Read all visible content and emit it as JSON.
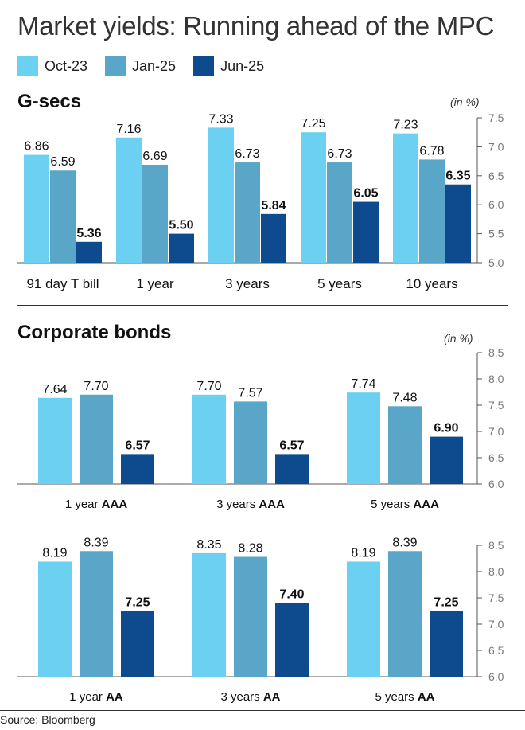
{
  "title": "Market yields: Running ahead of the MPC",
  "legend": [
    {
      "label": "Oct-23",
      "color": "#6cd0f2"
    },
    {
      "label": "Jan-25",
      "color": "#5aa6c8"
    },
    {
      "label": "Jun-25",
      "color": "#0d4a8e"
    }
  ],
  "sections": {
    "gsecs": {
      "title": "G-secs",
      "unit": "(in %)"
    },
    "corporate": {
      "title": "Corporate bonds",
      "unit": "(in %)"
    }
  },
  "source": "Source: Bloomberg",
  "chart_data": [
    {
      "type": "bar",
      "categories": [
        "91 day T bill",
        "1 year",
        "3 years",
        "5 years",
        "10 years"
      ],
      "series": [
        {
          "name": "Oct-23",
          "values": [
            6.86,
            7.16,
            7.33,
            7.25,
            7.23
          ]
        },
        {
          "name": "Jan-25",
          "values": [
            6.59,
            6.69,
            6.73,
            6.73,
            6.78
          ]
        },
        {
          "name": "Jun-25",
          "values": [
            5.36,
            5.5,
            5.84,
            6.05,
            6.35
          ]
        }
      ],
      "data_labels": [
        [
          "6.86",
          "7.16",
          "7.33",
          "7.25",
          "7.23"
        ],
        [
          "6.59",
          "6.69",
          "6.73",
          "6.73",
          "6.78"
        ],
        [
          "5.36",
          "5.50",
          "5.84",
          "6.05",
          "6.35"
        ]
      ],
      "ylim": [
        5.0,
        7.5
      ],
      "yticks": [
        "5.0",
        "5.5",
        "6.0",
        "6.5",
        "7.0",
        "7.5"
      ],
      "ytick_values": [
        5.0,
        5.5,
        6.0,
        6.5,
        7.0,
        7.5
      ],
      "legend": "top-left",
      "grid": false
    },
    {
      "type": "bar",
      "categories": [
        {
          "plain": "1 year",
          "bold": "AAA"
        },
        {
          "plain": "3 years",
          "bold": "AAA"
        },
        {
          "plain": "5 years",
          "bold": "AAA"
        }
      ],
      "series": [
        {
          "name": "Oct-23",
          "values": [
            7.64,
            7.7,
            7.74
          ]
        },
        {
          "name": "Jan-25",
          "values": [
            7.7,
            7.57,
            7.48
          ]
        },
        {
          "name": "Jun-25",
          "values": [
            6.57,
            6.57,
            6.9
          ]
        }
      ],
      "data_labels": [
        [
          "7.64",
          "7.70",
          "7.74"
        ],
        [
          "7.70",
          "7.57",
          "7.48"
        ],
        [
          "6.57",
          "6.57",
          "6.90"
        ]
      ],
      "ylim": [
        6.0,
        8.5
      ],
      "yticks": [
        "6.0",
        "6.5",
        "7.0",
        "7.5",
        "8.0",
        "8.5"
      ],
      "ytick_values": [
        6.0,
        6.5,
        7.0,
        7.5,
        8.0,
        8.5
      ],
      "grid": false
    },
    {
      "type": "bar",
      "categories": [
        {
          "plain": "1 year",
          "bold": "AA"
        },
        {
          "plain": "3 years",
          "bold": "AA"
        },
        {
          "plain": "5 years",
          "bold": "AA"
        }
      ],
      "series": [
        {
          "name": "Oct-23",
          "values": [
            8.19,
            8.35,
            8.19
          ]
        },
        {
          "name": "Jan-25",
          "values": [
            8.39,
            8.28,
            8.39
          ]
        },
        {
          "name": "Jun-25",
          "values": [
            7.25,
            7.4,
            7.25
          ]
        }
      ],
      "data_labels": [
        [
          "8.19",
          "8.35",
          "8.19"
        ],
        [
          "8.39",
          "8.28",
          "8.39"
        ],
        [
          "7.25",
          "7.40",
          "7.25"
        ]
      ],
      "ylim": [
        6.0,
        8.5
      ],
      "yticks": [
        "6.0",
        "6.5",
        "7.0",
        "7.5",
        "8.0",
        "8.5"
      ],
      "ytick_values": [
        6.0,
        6.5,
        7.0,
        7.5,
        8.0,
        8.5
      ],
      "grid": false
    }
  ]
}
